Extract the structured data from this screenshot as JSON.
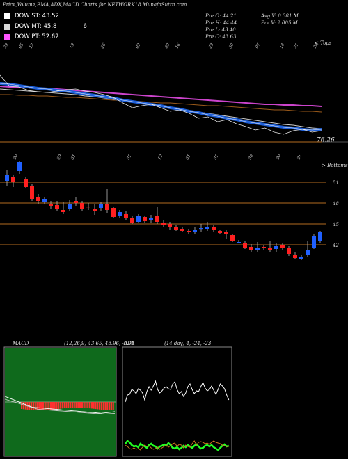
{
  "header": {
    "title": "Price,Volume,EMA,ADX,MACD Charts for NETWORK18",
    "site": "MunafaSutra.com"
  },
  "legend": [
    {
      "label": "DOW ST: 43.52",
      "extra": "",
      "color": "#ffffff"
    },
    {
      "label": "DOW MT: 45.8",
      "extra": "6",
      "color": "#d7d7d7"
    },
    {
      "label": "DOW PT: 52.62",
      "extra": "",
      "color": "#ff55ff"
    }
  ],
  "stats": {
    "open": "Pre  O: 44.21",
    "high": "Pre  H: 44.44",
    "low": "Pre  L: 43.40",
    "close": "Pre  C: 43.63",
    "avg_vol": "Avg V: 0.381 M",
    "pre_vol": "Pre  V: 2.005 M"
  },
  "ema_panel": {
    "top_dates": [
      "29",
      "05",
      "12",
      "19",
      "26",
      "02",
      "09",
      "16",
      "23",
      "30",
      "07",
      "14",
      "21",
      "28",
      "04"
    ],
    "top_right_label": "< Tops",
    "bottom_right_label": "> Bottoms",
    "bottom_dates": [
      "30",
      "29",
      "31",
      "31",
      "12",
      "31",
      "31",
      "30",
      "30",
      "31"
    ],
    "last_value": "76.26",
    "price_line": [
      108,
      124,
      125,
      130,
      132,
      133,
      131,
      129,
      128,
      131,
      133,
      136,
      140,
      148,
      155,
      152,
      150,
      155,
      160,
      158,
      163,
      170,
      168,
      175,
      172,
      178,
      182,
      187,
      184,
      190,
      193,
      188,
      186,
      190,
      188
    ],
    "ema_st": [
      120,
      121,
      123,
      125,
      127,
      128,
      130,
      131,
      133,
      135,
      137,
      139,
      141,
      144,
      146,
      148,
      150,
      152,
      155,
      157,
      160,
      162,
      165,
      167,
      170,
      172,
      175,
      177,
      179,
      181,
      183,
      184,
      186,
      187,
      186
    ],
    "ema_mt": [
      128,
      129,
      130,
      131,
      132,
      133,
      134,
      135,
      136,
      138,
      139,
      141,
      143,
      145,
      147,
      149,
      151,
      153,
      155,
      157,
      159,
      161,
      163,
      165,
      167,
      169,
      171,
      173,
      175,
      177,
      179,
      180,
      182,
      184,
      185
    ],
    "ema_pt": [
      124,
      125,
      126,
      126,
      127,
      128,
      128,
      129,
      130,
      131,
      132,
      133,
      134,
      135,
      136,
      137,
      138,
      139,
      140,
      141,
      142,
      143,
      144,
      145,
      146,
      147,
      148,
      149,
      150,
      150,
      151,
      151,
      152,
      152,
      153
    ],
    "ema_lt": [
      136,
      136,
      137,
      137,
      138,
      138,
      139,
      140,
      140,
      141,
      142,
      143,
      144,
      144,
      145,
      146,
      147,
      148,
      148,
      149,
      150,
      151,
      152,
      152,
      153,
      154,
      155,
      156,
      157,
      158,
      158,
      159,
      160,
      160,
      161
    ]
  },
  "price_panel": {
    "y_labels": [
      "51",
      "48",
      "45",
      "42"
    ],
    "candles": [
      {
        "o": 51.2,
        "c": 52.0,
        "h": 52.8,
        "l": 50.4
      },
      {
        "o": 51.8,
        "c": 51.0,
        "h": 52.1,
        "l": 50.3
      },
      {
        "o": 52.6,
        "c": 53.9,
        "h": 54.0,
        "l": 52.2
      },
      {
        "o": 51.5,
        "c": 50.3,
        "h": 51.8,
        "l": 50.1
      },
      {
        "o": 50.5,
        "c": 48.6,
        "h": 50.8,
        "l": 48.3
      },
      {
        "o": 48.9,
        "c": 48.3,
        "h": 49.3,
        "l": 47.9
      },
      {
        "o": 48.1,
        "c": 48.6,
        "h": 48.9,
        "l": 47.8
      },
      {
        "o": 47.9,
        "c": 47.6,
        "h": 48.3,
        "l": 47.2
      },
      {
        "o": 47.7,
        "c": 47.1,
        "h": 48.3,
        "l": 46.9
      },
      {
        "o": 47.0,
        "c": 46.7,
        "h": 48.1,
        "l": 46.4
      },
      {
        "o": 47.1,
        "c": 47.9,
        "h": 48.5,
        "l": 46.8
      },
      {
        "o": 48.3,
        "c": 48.0,
        "h": 48.9,
        "l": 47.6
      },
      {
        "o": 48.0,
        "c": 47.2,
        "h": 48.3,
        "l": 46.9
      },
      {
        "o": 47.5,
        "c": 47.4,
        "h": 48.0,
        "l": 47.0
      },
      {
        "o": 47.1,
        "c": 46.8,
        "h": 47.8,
        "l": 46.3
      },
      {
        "o": 47.3,
        "c": 47.8,
        "h": 48.2,
        "l": 46.9
      },
      {
        "o": 47.8,
        "c": 47.0,
        "h": 50.0,
        "l": 46.6
      },
      {
        "o": 47.3,
        "c": 46.0,
        "h": 47.5,
        "l": 45.8
      },
      {
        "o": 46.2,
        "c": 46.7,
        "h": 47.0,
        "l": 45.9
      },
      {
        "o": 46.5,
        "c": 45.9,
        "h": 46.8,
        "l": 45.6
      },
      {
        "o": 45.9,
        "c": 45.2,
        "h": 46.2,
        "l": 45.0
      },
      {
        "o": 45.3,
        "c": 46.1,
        "h": 46.5,
        "l": 45.1
      },
      {
        "o": 46.0,
        "c": 45.4,
        "h": 46.2,
        "l": 45.1
      },
      {
        "o": 45.5,
        "c": 45.9,
        "h": 46.3,
        "l": 45.2
      },
      {
        "o": 46.1,
        "c": 45.3,
        "h": 47.5,
        "l": 45.0
      },
      {
        "o": 45.2,
        "c": 44.8,
        "h": 45.5,
        "l": 44.6
      },
      {
        "o": 45.0,
        "c": 44.5,
        "h": 45.3,
        "l": 44.2
      },
      {
        "o": 44.5,
        "c": 44.2,
        "h": 44.8,
        "l": 44.0
      },
      {
        "o": 44.3,
        "c": 44.0,
        "h": 44.6,
        "l": 43.8
      },
      {
        "o": 44.0,
        "c": 43.8,
        "h": 44.3,
        "l": 43.6
      },
      {
        "o": 43.8,
        "c": 44.2,
        "h": 44.5,
        "l": 43.6
      },
      {
        "o": 44.4,
        "c": 44.4,
        "h": 45.0,
        "l": 43.9
      },
      {
        "o": 44.3,
        "c": 44.6,
        "h": 45.3,
        "l": 44.0
      },
      {
        "o": 44.5,
        "c": 44.1,
        "h": 44.8,
        "l": 43.8
      },
      {
        "o": 44.0,
        "c": 43.7,
        "h": 44.2,
        "l": 43.5
      },
      {
        "o": 43.9,
        "c": 43.6,
        "h": 44.1,
        "l": 42.9
      },
      {
        "o": 43.4,
        "c": 42.6,
        "h": 43.6,
        "l": 42.4
      },
      {
        "o": 42.4,
        "c": 42.4,
        "h": 42.7,
        "l": 42.2
      },
      {
        "o": 42.3,
        "c": 41.6,
        "h": 42.6,
        "l": 41.4
      },
      {
        "o": 41.7,
        "c": 41.3,
        "h": 42.1,
        "l": 41.0
      },
      {
        "o": 41.3,
        "c": 41.6,
        "h": 42.4,
        "l": 40.9
      },
      {
        "o": 41.7,
        "c": 41.5,
        "h": 42.0,
        "l": 41.2
      },
      {
        "o": 41.6,
        "c": 41.3,
        "h": 42.5,
        "l": 41.0
      },
      {
        "o": 41.4,
        "c": 41.8,
        "h": 42.3,
        "l": 41.0
      },
      {
        "o": 41.9,
        "c": 41.5,
        "h": 42.2,
        "l": 41.2
      },
      {
        "o": 41.5,
        "c": 40.7,
        "h": 41.8,
        "l": 40.4
      },
      {
        "o": 40.6,
        "c": 40.1,
        "h": 40.9,
        "l": 39.9
      },
      {
        "o": 40.0,
        "c": 40.3,
        "h": 40.5,
        "l": 39.8
      },
      {
        "o": 40.5,
        "c": 41.3,
        "h": 42.5,
        "l": 40.3
      },
      {
        "o": 41.6,
        "c": 43.2,
        "h": 43.6,
        "l": 41.4
      },
      {
        "o": 42.6,
        "c": 43.8,
        "h": 44.0,
        "l": 42.2
      }
    ]
  },
  "macd": {
    "label": "MACD",
    "params": "(12,26,9) 43.65, 48.96, -0.91"
  },
  "adx": {
    "label": "ADX",
    "params": "(14 day) 4, -24, -23"
  }
}
